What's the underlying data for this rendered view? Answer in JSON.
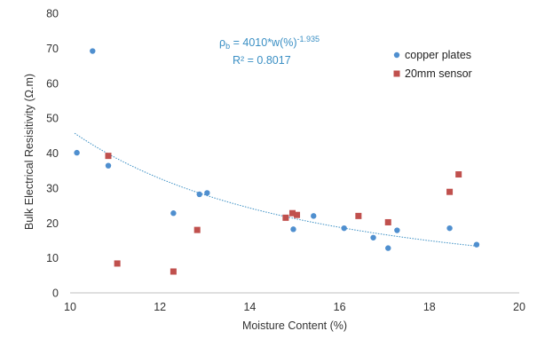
{
  "chart_data": {
    "type": "scatter",
    "xlabel": "Moisture Content (%)",
    "ylabel": "Bulk Electrical Resisitivity (Ω.m)",
    "xlim": [
      10,
      20
    ],
    "ylim": [
      0,
      80
    ],
    "x_ticks": [
      "10",
      "12",
      "14",
      "16",
      "18",
      "20"
    ],
    "y_ticks": [
      "0",
      "10",
      "20",
      "30",
      "40",
      "50",
      "60",
      "70",
      "80"
    ],
    "grid": false,
    "legend_position": "top-right",
    "series": [
      {
        "name": "copper plates",
        "marker": "circle",
        "color": "#4f8fcf",
        "points": [
          {
            "x": 10.15,
            "y": 40.1
          },
          {
            "x": 10.5,
            "y": 69.2
          },
          {
            "x": 10.85,
            "y": 36.4
          },
          {
            "x": 12.3,
            "y": 22.8
          },
          {
            "x": 12.88,
            "y": 28.2
          },
          {
            "x": 13.05,
            "y": 28.6
          },
          {
            "x": 14.97,
            "y": 18.2
          },
          {
            "x": 15.42,
            "y": 22.0
          },
          {
            "x": 16.1,
            "y": 18.5
          },
          {
            "x": 16.75,
            "y": 15.8
          },
          {
            "x": 17.08,
            "y": 12.8
          },
          {
            "x": 17.28,
            "y": 17.9
          },
          {
            "x": 18.45,
            "y": 18.5
          },
          {
            "x": 19.05,
            "y": 13.8
          }
        ]
      },
      {
        "name": "20mm sensor",
        "marker": "square",
        "color": "#c0504d",
        "points": [
          {
            "x": 10.85,
            "y": 39.2
          },
          {
            "x": 11.05,
            "y": 8.4
          },
          {
            "x": 12.3,
            "y": 6.1
          },
          {
            "x": 12.83,
            "y": 18.0
          },
          {
            "x": 14.8,
            "y": 21.5
          },
          {
            "x": 14.95,
            "y": 22.8
          },
          {
            "x": 15.05,
            "y": 22.3
          },
          {
            "x": 16.42,
            "y": 22.0
          },
          {
            "x": 17.08,
            "y": 20.2
          },
          {
            "x": 18.45,
            "y": 28.9
          },
          {
            "x": 18.65,
            "y": 33.9
          }
        ]
      }
    ],
    "trendline": {
      "type": "power",
      "coefficient": 4010,
      "exponent": -1.935,
      "x_range": [
        10.1,
        19.1
      ],
      "color": "#3a8fc4",
      "style": "dotted"
    },
    "annotations": {
      "equation_lhs": "ρ",
      "equation_lhs_sub": "b",
      "equation_rhs": " = 4010*w(%)",
      "equation_exponent": "-1.935",
      "r_squared": "R² = 0.8017"
    }
  }
}
